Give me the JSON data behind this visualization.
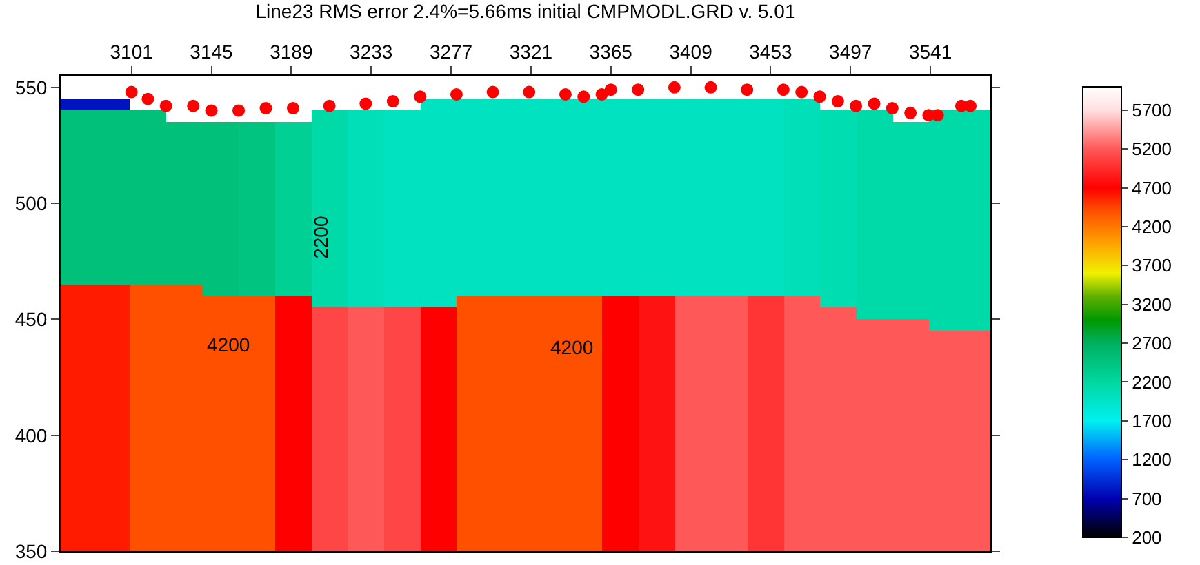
{
  "chart_data": {
    "type": "heatmap",
    "title": "Line23 RMS error 2.4%=5.66ms initial CMPMODL.GRD v. 5.01",
    "x": [
      3070,
      3090,
      3110,
      3130,
      3150,
      3170,
      3190,
      3210,
      3230,
      3250,
      3270,
      3290,
      3310,
      3330,
      3350,
      3370,
      3390,
      3410,
      3430,
      3450,
      3470,
      3490,
      3510,
      3530,
      3550,
      3570
    ],
    "y": [
      542.5,
      537.5,
      532.5,
      527.5,
      522.5,
      517.5,
      512.5,
      507.5,
      502.5,
      497.5,
      492.5,
      487.5,
      482.5,
      477.5,
      472.5,
      467.5,
      462.5,
      457.5,
      452.5,
      447.5,
      442.5,
      437.5,
      432.5,
      427.5,
      422.5,
      417.5,
      412.5,
      407.5,
      402.5,
      397.5,
      392.5,
      387.5,
      382.5,
      377.5,
      372.5,
      367.5,
      362.5,
      357.5,
      352.5
    ],
    "cells": [
      [
        800,
        800,
        null,
        null,
        null,
        null,
        null,
        null,
        null,
        null,
        2000,
        2000,
        2000,
        2000,
        2000,
        2000,
        2000,
        2000,
        2000,
        2000,
        2050,
        null,
        null,
        null,
        null,
        null
      ],
      [
        2500,
        2500,
        2500,
        null,
        null,
        null,
        null,
        2150,
        2050,
        2000,
        2000,
        2000,
        2000,
        2000,
        2000,
        2000,
        2000,
        2000,
        2000,
        2000,
        2050,
        2100,
        2150,
        null,
        2150,
        2150
      ],
      [
        2500,
        2500,
        2500,
        2500,
        2500,
        2450,
        2300,
        2150,
        2050,
        2000,
        2000,
        2000,
        2000,
        2000,
        2000,
        2000,
        2000,
        2000,
        2000,
        2000,
        2050,
        2100,
        2150,
        2150,
        2150,
        2150
      ],
      [
        2500,
        2500,
        2500,
        2500,
        2500,
        2450,
        2300,
        2150,
        2050,
        2000,
        2000,
        2000,
        2000,
        2000,
        2000,
        2000,
        2000,
        2000,
        2000,
        2000,
        2050,
        2100,
        2150,
        2150,
        2150,
        2150
      ],
      [
        2500,
        2500,
        2500,
        2500,
        2500,
        2450,
        2300,
        2150,
        2050,
        2000,
        2000,
        2000,
        2000,
        2000,
        2000,
        2000,
        2000,
        2000,
        2000,
        2000,
        2050,
        2100,
        2150,
        2150,
        2150,
        2150
      ],
      [
        2500,
        2500,
        2500,
        2500,
        2500,
        2450,
        2300,
        2150,
        2050,
        2000,
        2000,
        2000,
        2000,
        2000,
        2000,
        2000,
        2000,
        2000,
        2000,
        2000,
        2050,
        2100,
        2150,
        2150,
        2150,
        2150
      ],
      [
        2500,
        2500,
        2500,
        2500,
        2500,
        2450,
        2300,
        2150,
        2050,
        2000,
        2000,
        2000,
        2000,
        2000,
        2000,
        2000,
        2000,
        2000,
        2000,
        2000,
        2050,
        2100,
        2150,
        2150,
        2150,
        2150
      ],
      [
        2500,
        2500,
        2500,
        2500,
        2500,
        2450,
        2300,
        2150,
        2050,
        2000,
        2000,
        2000,
        2000,
        2000,
        2000,
        2000,
        2000,
        2000,
        2000,
        2000,
        2050,
        2100,
        2150,
        2150,
        2150,
        2150
      ],
      [
        2500,
        2500,
        2500,
        2500,
        2500,
        2450,
        2300,
        2150,
        2050,
        2000,
        2000,
        2000,
        2000,
        2000,
        2000,
        2000,
        2000,
        2000,
        2000,
        2000,
        2050,
        2100,
        2150,
        2150,
        2150,
        2150
      ],
      [
        2500,
        2500,
        2500,
        2500,
        2500,
        2450,
        2300,
        2150,
        2050,
        2000,
        2000,
        2000,
        2000,
        2000,
        2000,
        2000,
        2000,
        2000,
        2000,
        2000,
        2050,
        2100,
        2150,
        2150,
        2150,
        2150
      ],
      [
        2500,
        2500,
        2500,
        2500,
        2500,
        2450,
        2300,
        2150,
        2050,
        2000,
        2000,
        2000,
        2000,
        2000,
        2000,
        2000,
        2000,
        2000,
        2000,
        2000,
        2050,
        2100,
        2150,
        2150,
        2150,
        2150
      ],
      [
        2500,
        2500,
        2500,
        2500,
        2500,
        2450,
        2300,
        2150,
        2050,
        2000,
        2000,
        2000,
        2000,
        2000,
        2000,
        2000,
        2000,
        2000,
        2000,
        2000,
        2050,
        2100,
        2150,
        2150,
        2150,
        2150
      ],
      [
        2500,
        2500,
        2500,
        2500,
        2500,
        2450,
        2300,
        2150,
        2050,
        2000,
        2000,
        2000,
        2000,
        2000,
        2000,
        2000,
        2000,
        2000,
        2000,
        2000,
        2050,
        2100,
        2150,
        2150,
        2150,
        2150
      ],
      [
        2500,
        2500,
        2500,
        2500,
        2500,
        2450,
        2300,
        2150,
        2050,
        2000,
        2000,
        2000,
        2000,
        2000,
        2000,
        2000,
        2000,
        2000,
        2000,
        2000,
        2050,
        2100,
        2150,
        2150,
        2150,
        2150
      ],
      [
        2500,
        2500,
        2500,
        2500,
        2500,
        2450,
        2300,
        2150,
        2050,
        2000,
        2000,
        2000,
        2000,
        2000,
        2000,
        2000,
        2000,
        2000,
        2000,
        2000,
        2050,
        2100,
        2150,
        2150,
        2150,
        2150
      ],
      [
        2500,
        2500,
        2500,
        2500,
        2500,
        2450,
        2300,
        2150,
        2050,
        2000,
        2000,
        2000,
        2000,
        2000,
        2000,
        2000,
        2000,
        2000,
        2000,
        2000,
        2050,
        2100,
        2150,
        2150,
        2150,
        2150
      ],
      [
        4600,
        4600,
        4400,
        4400,
        2500,
        2450,
        2300,
        2150,
        2050,
        2000,
        2000,
        2000,
        2000,
        2000,
        2000,
        2000,
        2000,
        2000,
        2000,
        2000,
        2050,
        2100,
        2150,
        2150,
        2150,
        2150
      ],
      [
        4600,
        4600,
        4400,
        4400,
        4400,
        4400,
        4700,
        2150,
        2050,
        2000,
        2000,
        4400,
        4400,
        4400,
        4400,
        4700,
        4800,
        5200,
        5200,
        5000,
        5200,
        2100,
        2150,
        2150,
        2150,
        2150
      ],
      [
        4600,
        4600,
        4400,
        4400,
        4400,
        4400,
        4700,
        5100,
        5200,
        5100,
        4700,
        4400,
        4400,
        4400,
        4400,
        4700,
        4800,
        5200,
        5200,
        5000,
        5200,
        5200,
        2150,
        2150,
        2150,
        2150
      ],
      [
        4600,
        4600,
        4400,
        4400,
        4400,
        4400,
        4700,
        5100,
        5200,
        5100,
        4700,
        4400,
        4400,
        4400,
        4400,
        4700,
        4800,
        5200,
        5200,
        5000,
        5200,
        5200,
        5200,
        5200,
        2150,
        2150
      ],
      [
        4600,
        4600,
        4400,
        4400,
        4400,
        4400,
        4700,
        5100,
        5200,
        5100,
        4700,
        4400,
        4400,
        4400,
        4400,
        4700,
        4800,
        5200,
        5200,
        5000,
        5200,
        5200,
        5200,
        5200,
        5200,
        5200
      ],
      [
        4600,
        4600,
        4400,
        4400,
        4400,
        4400,
        4700,
        5100,
        5200,
        5100,
        4700,
        4400,
        4400,
        4400,
        4400,
        4700,
        4800,
        5200,
        5200,
        5000,
        5200,
        5200,
        5200,
        5200,
        5200,
        5200
      ],
      [
        4600,
        4600,
        4400,
        4400,
        4400,
        4400,
        4700,
        5100,
        5200,
        5100,
        4700,
        4400,
        4400,
        4400,
        4400,
        4700,
        4800,
        5200,
        5200,
        5000,
        5200,
        5200,
        5200,
        5200,
        5200,
        5200
      ],
      [
        4600,
        4600,
        4400,
        4400,
        4400,
        4400,
        4700,
        5100,
        5200,
        5100,
        4700,
        4400,
        4400,
        4400,
        4400,
        4700,
        4800,
        5200,
        5200,
        5000,
        5200,
        5200,
        5200,
        5200,
        5200,
        5200
      ],
      [
        4600,
        4600,
        4400,
        4400,
        4400,
        4400,
        4700,
        5100,
        5200,
        5100,
        4700,
        4400,
        4400,
        4400,
        4400,
        4700,
        4800,
        5200,
        5200,
        5000,
        5200,
        5200,
        5200,
        5200,
        5200,
        5200
      ],
      [
        4600,
        4600,
        4400,
        4400,
        4400,
        4400,
        4700,
        5100,
        5200,
        5100,
        4700,
        4400,
        4400,
        4400,
        4400,
        4700,
        4800,
        5200,
        5200,
        5000,
        5200,
        5200,
        5200,
        5200,
        5200,
        5200
      ],
      [
        4600,
        4600,
        4400,
        4400,
        4400,
        4400,
        4700,
        5100,
        5200,
        5100,
        4700,
        4400,
        4400,
        4400,
        4400,
        4700,
        4800,
        5200,
        5200,
        5000,
        5200,
        5200,
        5200,
        5200,
        5200,
        5200
      ],
      [
        4600,
        4600,
        4400,
        4400,
        4400,
        4400,
        4700,
        5100,
        5200,
        5100,
        4700,
        4400,
        4400,
        4400,
        4400,
        4700,
        4800,
        5200,
        5200,
        5000,
        5200,
        5200,
        5200,
        5200,
        5200,
        5200
      ],
      [
        4600,
        4600,
        4400,
        4400,
        4400,
        4400,
        4700,
        5100,
        5200,
        5100,
        4700,
        4400,
        4400,
        4400,
        4400,
        4700,
        4800,
        5200,
        5200,
        5000,
        5200,
        5200,
        5200,
        5200,
        5200,
        5200
      ],
      [
        4600,
        4600,
        4400,
        4400,
        4400,
        4400,
        4700,
        5100,
        5200,
        5100,
        4700,
        4400,
        4400,
        4400,
        4400,
        4700,
        4800,
        5200,
        5200,
        5000,
        5200,
        5200,
        5200,
        5200,
        5200,
        5200
      ],
      [
        4600,
        4600,
        4400,
        4400,
        4400,
        4400,
        4700,
        5100,
        5200,
        5100,
        4700,
        4400,
        4400,
        4400,
        4400,
        4700,
        4800,
        5200,
        5200,
        5000,
        5200,
        5200,
        5200,
        5200,
        5200,
        5200
      ],
      [
        4600,
        4600,
        4400,
        4400,
        4400,
        4400,
        4700,
        5100,
        5200,
        5100,
        4700,
        4400,
        4400,
        4400,
        4400,
        4700,
        4800,
        5200,
        5200,
        5000,
        5200,
        5200,
        5200,
        5200,
        5200,
        5200
      ],
      [
        4600,
        4600,
        4400,
        4400,
        4400,
        4400,
        4700,
        5100,
        5200,
        5100,
        4700,
        4400,
        4400,
        4400,
        4400,
        4700,
        4800,
        5200,
        5200,
        5000,
        5200,
        5200,
        5200,
        5200,
        5200,
        5200
      ],
      [
        4600,
        4600,
        4400,
        4400,
        4400,
        4400,
        4700,
        5100,
        5200,
        5100,
        4700,
        4400,
        4400,
        4400,
        4400,
        4700,
        4800,
        5200,
        5200,
        5000,
        5200,
        5200,
        5200,
        5200,
        5200,
        5200
      ],
      [
        4600,
        4600,
        4400,
        4400,
        4400,
        4400,
        4700,
        5100,
        5200,
        5100,
        4700,
        4400,
        4400,
        4400,
        4400,
        4700,
        4800,
        5200,
        5200,
        5000,
        5200,
        5200,
        5200,
        5200,
        5200,
        5200
      ],
      [
        4600,
        4600,
        4400,
        4400,
        4400,
        4400,
        4700,
        5100,
        5200,
        5100,
        4700,
        4400,
        4400,
        4400,
        4400,
        4700,
        4800,
        5200,
        5200,
        5000,
        5200,
        5200,
        5200,
        5200,
        5200,
        5200
      ],
      [
        4600,
        4600,
        4400,
        4400,
        4400,
        4400,
        4700,
        5100,
        5200,
        5100,
        4700,
        4400,
        4400,
        4400,
        4400,
        4700,
        4800,
        5200,
        5200,
        5000,
        5200,
        5200,
        5200,
        5200,
        5200,
        5200
      ],
      [
        4600,
        4600,
        4400,
        4400,
        4400,
        4400,
        4700,
        5100,
        5200,
        5100,
        4700,
        4400,
        4400,
        4400,
        4400,
        4700,
        4800,
        5200,
        5200,
        5000,
        5200,
        5200,
        5200,
        5200,
        5200,
        5200
      ],
      [
        4600,
        4600,
        4400,
        4400,
        4400,
        4400,
        4700,
        5100,
        5200,
        5100,
        4700,
        4400,
        4400,
        4400,
        4400,
        4700,
        4800,
        5200,
        5200,
        5000,
        5200,
        5200,
        5200,
        5200,
        5200,
        5200
      ]
    ],
    "clim": [
      200,
      6000
    ],
    "cticks": [
      200,
      700,
      1200,
      1700,
      2200,
      2700,
      3200,
      3700,
      4200,
      4700,
      5200,
      5700
    ],
    "xlim": [
      3062,
      3574
    ],
    "xticks": [
      3101,
      3145,
      3189,
      3233,
      3277,
      3321,
      3365,
      3409,
      3453,
      3497,
      3541
    ],
    "ylim": [
      350,
      555
    ],
    "yticks": [
      350,
      400,
      450,
      500,
      550
    ],
    "series": [
      {
        "type": "scatter",
        "color": "#ff0000",
        "x": [
          3101,
          3110,
          3120,
          3135,
          3145,
          3160,
          3175,
          3190,
          3210,
          3230,
          3245,
          3260,
          3280,
          3300,
          3320,
          3340,
          3350,
          3360,
          3365,
          3380,
          3400,
          3420,
          3440,
          3460,
          3470,
          3480,
          3490,
          3500,
          3510,
          3520,
          3530,
          3540,
          3545,
          3558,
          3563
        ],
        "values": [
          548,
          545,
          542,
          542,
          540,
          540,
          541,
          541,
          542,
          543,
          544,
          546,
          547,
          548,
          548,
          547,
          546,
          547,
          549,
          549,
          550,
          550,
          549,
          549,
          548,
          546,
          544,
          542,
          543,
          541,
          539,
          538,
          538,
          542,
          542
        ]
      }
    ],
    "marker": "circle",
    "annotations": [
      "2200",
      "4200",
      "4200"
    ]
  }
}
